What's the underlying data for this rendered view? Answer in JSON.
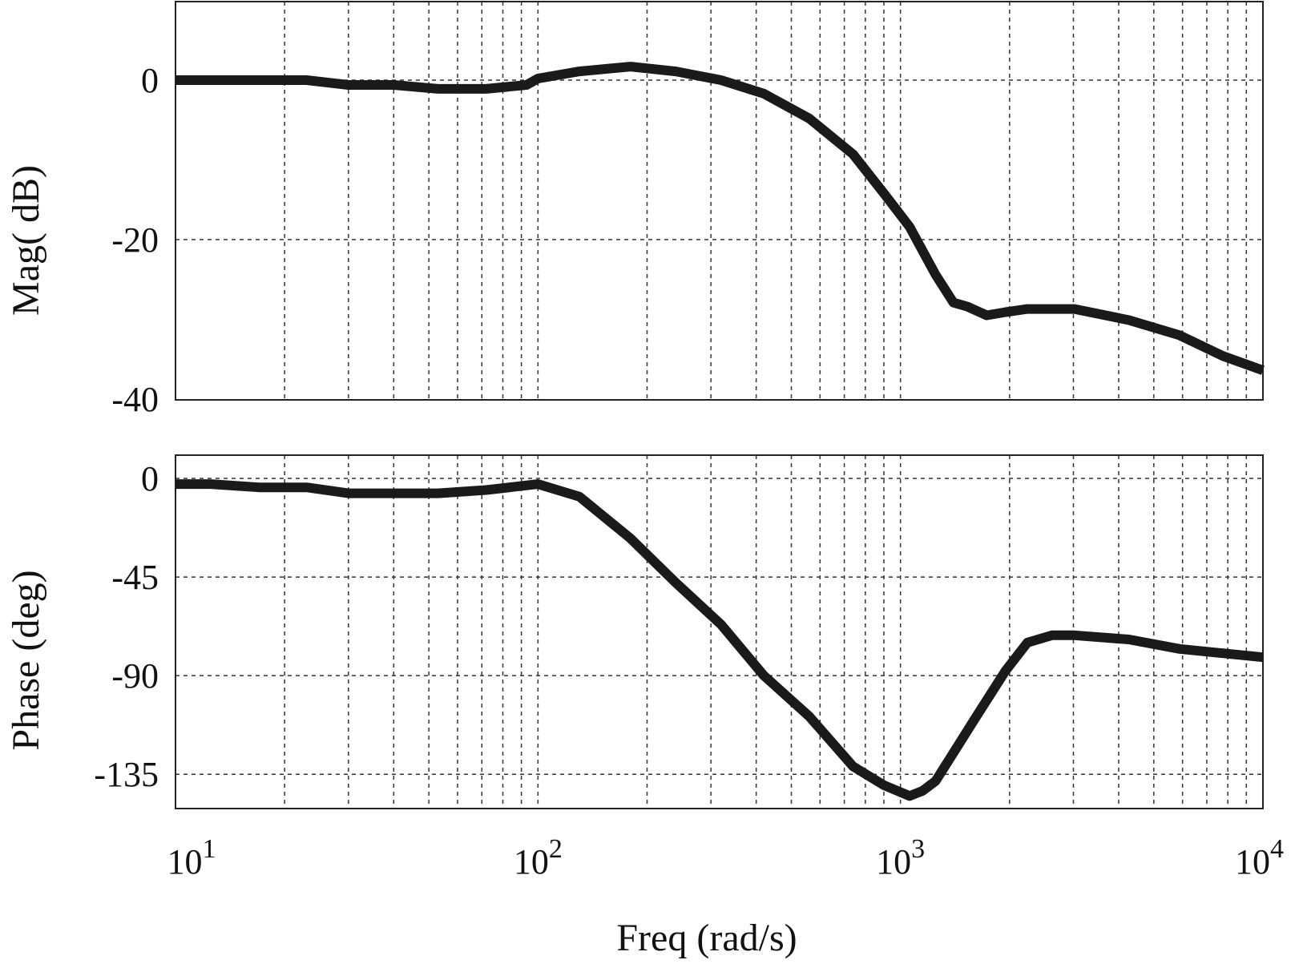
{
  "chart_data": [
    {
      "type": "line",
      "ylabel": "Mag( dB)",
      "xscale": "log",
      "xlim": [
        10,
        10000
      ],
      "ylim": [
        -40,
        10
      ],
      "yticks": [
        0,
        -20,
        -40
      ],
      "ytick_labels": [
        "0",
        "-20",
        "-40"
      ],
      "grid": true,
      "series": [
        {
          "x": [
            10,
            13,
            17,
            23,
            30,
            40,
            53,
            72,
            93,
            100,
            130,
            180,
            240,
            320,
            420,
            560,
            740,
            900,
            1060,
            1250,
            1400,
            1530,
            1730,
            1950,
            2240,
            2620,
            3020,
            4270,
            5890,
            7760,
            10000
          ],
          "y": [
            0,
            0,
            0,
            0,
            -0.6,
            -0.6,
            -1.1,
            -1.1,
            -0.6,
            0.2,
            1.1,
            1.7,
            1.1,
            0,
            -1.7,
            -4.8,
            -9.3,
            -14.2,
            -18.4,
            -24.4,
            -27.9,
            -28.4,
            -29.5,
            -29.1,
            -28.7,
            -28.7,
            -28.7,
            -30.1,
            -32.0,
            -34.6,
            -36.4
          ]
        }
      ]
    },
    {
      "type": "line",
      "ylabel": "Phase (deg)",
      "xlabel": "Freq (rad/s)",
      "xscale": "log",
      "xlim": [
        10,
        10000
      ],
      "ylim": [
        -150,
        10
      ],
      "yticks": [
        0,
        -45,
        -90,
        -135
      ],
      "ytick_labels": [
        "0",
        "-45",
        "-90",
        "-135"
      ],
      "xticks": [
        10,
        100,
        1000,
        10000
      ],
      "xtick_bases": [
        "10",
        "10",
        "10",
        "10"
      ],
      "xtick_exponents": [
        "1",
        "2",
        "3",
        "4"
      ],
      "grid": true,
      "series": [
        {
          "x": [
            10,
            12.5,
            17,
            23,
            30,
            40,
            53,
            72,
            100,
            130,
            180,
            240,
            320,
            420,
            560,
            740,
            900,
            1060,
            1150,
            1250,
            1400,
            1600,
            1950,
            2240,
            2620,
            3020,
            4270,
            5890,
            10000
          ],
          "y": [
            -2.6,
            -2.6,
            -4.1,
            -4.1,
            -6.8,
            -6.8,
            -6.8,
            -5.3,
            -2.6,
            -8.3,
            -27.4,
            -47.6,
            -66.7,
            -90.0,
            -108.6,
            -131.4,
            -140.0,
            -144.9,
            -142.6,
            -138.1,
            -125.2,
            -110.0,
            -87.7,
            -74.9,
            -71.6,
            -71.6,
            -73.5,
            -77.8,
            -81.6
          ]
        }
      ]
    }
  ]
}
